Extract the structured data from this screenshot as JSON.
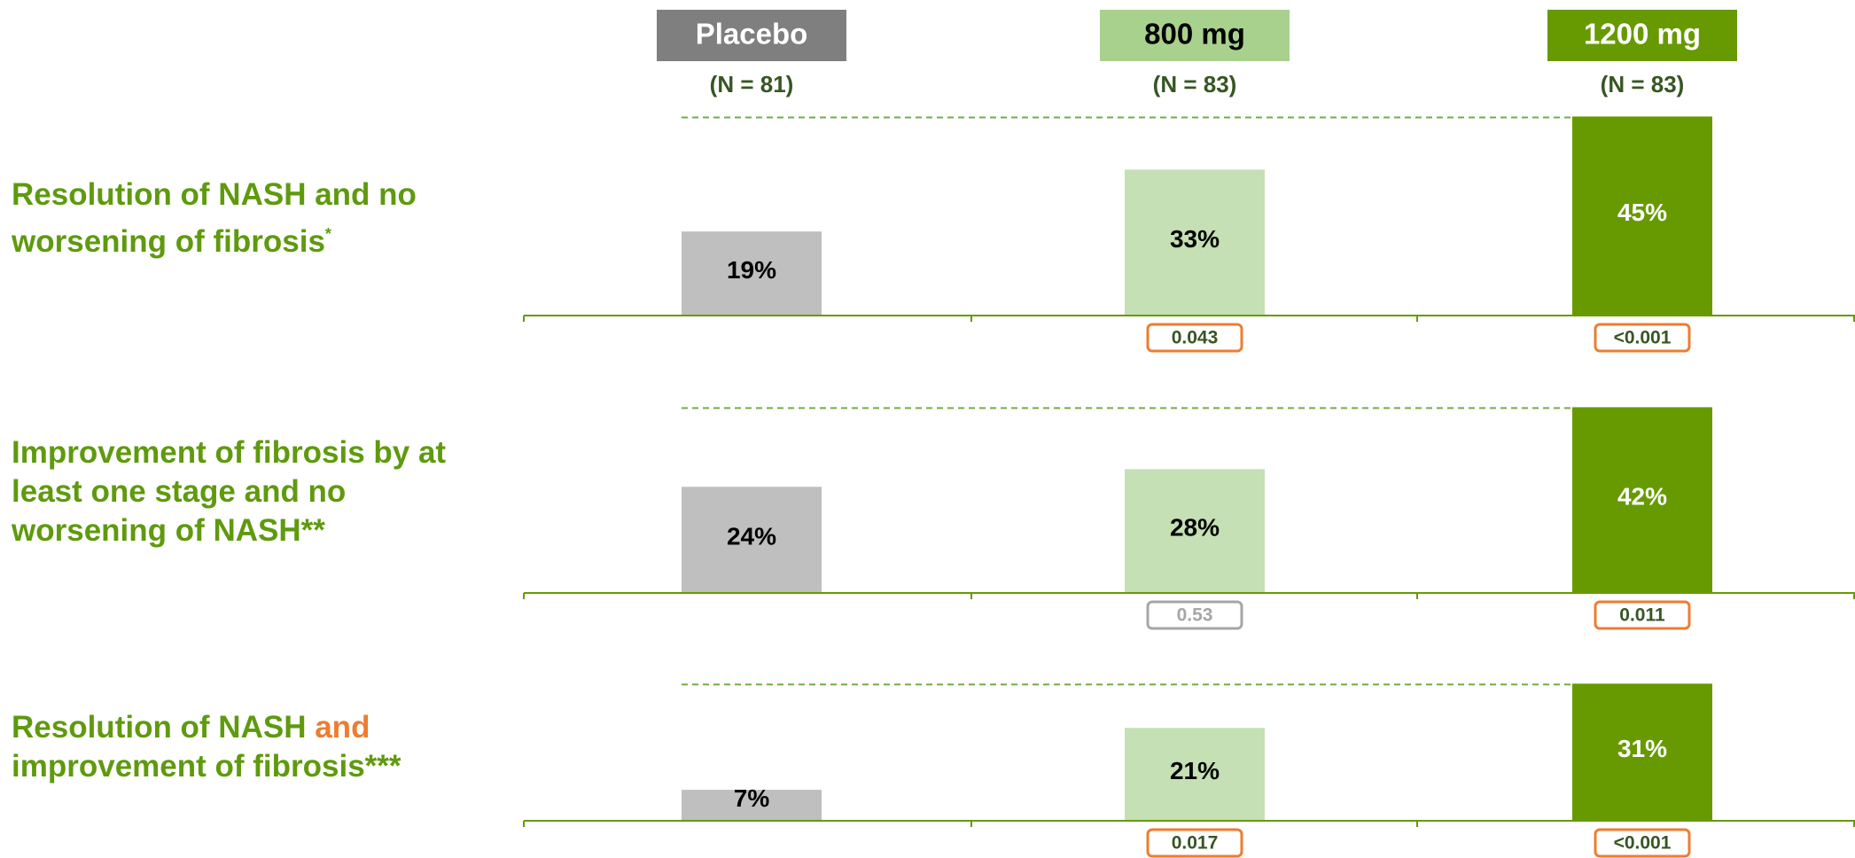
{
  "header": {
    "groups": [
      {
        "label": "Placebo",
        "n": "(N = 81)",
        "header_color": "#7f7f7f",
        "bar_color": "#bfbfbf",
        "label_color": "#ffffff",
        "value_color": "#000000"
      },
      {
        "label": "800 mg",
        "n": "(N = 83)",
        "header_color": "#a9d18e",
        "bar_color": "#c5e0b4",
        "label_color": "#000000",
        "value_color": "#000000"
      },
      {
        "label": "1200 mg",
        "n": "(N = 83)",
        "header_color": "#669a00",
        "bar_color": "#669a00",
        "label_color": "#ffffff",
        "value_color": "#ffffff"
      }
    ]
  },
  "chart_data": [
    {
      "type": "bar",
      "title": [
        {
          "text": "Resolution of NASH and no worsening of fibrosis"
        },
        {
          "text": "*",
          "sup": true
        }
      ],
      "values": [
        19,
        33,
        45
      ],
      "value_labels": [
        "19%",
        "33%",
        "45%"
      ],
      "p_values": [
        null,
        {
          "label": "0.043",
          "color": "#ed7d31"
        },
        {
          "label": "<0.001",
          "color": "#ed7d31"
        }
      ]
    },
    {
      "type": "bar",
      "title": [
        {
          "text": "Improvement of fibrosis by at least one stage and no worsening of NASH**"
        }
      ],
      "values": [
        24,
        28,
        42
      ],
      "value_labels": [
        "24%",
        "28%",
        "42%"
      ],
      "p_values": [
        null,
        {
          "label": "0.53",
          "color": "#a6a6a6"
        },
        {
          "label": "0.011",
          "color": "#ed7d31"
        }
      ]
    },
    {
      "type": "bar",
      "title": [
        {
          "text": "Resolution of NASH "
        },
        {
          "text": "and",
          "color": "#ed7d31"
        },
        {
          "text": " improvement of fibrosis***"
        }
      ],
      "values": [
        7,
        21,
        31
      ],
      "value_labels": [
        "7%",
        "21%",
        "31%"
      ],
      "p_values": [
        null,
        {
          "label": "0.017",
          "color": "#ed7d31"
        },
        {
          "label": "<0.001",
          "color": "#ed7d31"
        }
      ]
    }
  ]
}
